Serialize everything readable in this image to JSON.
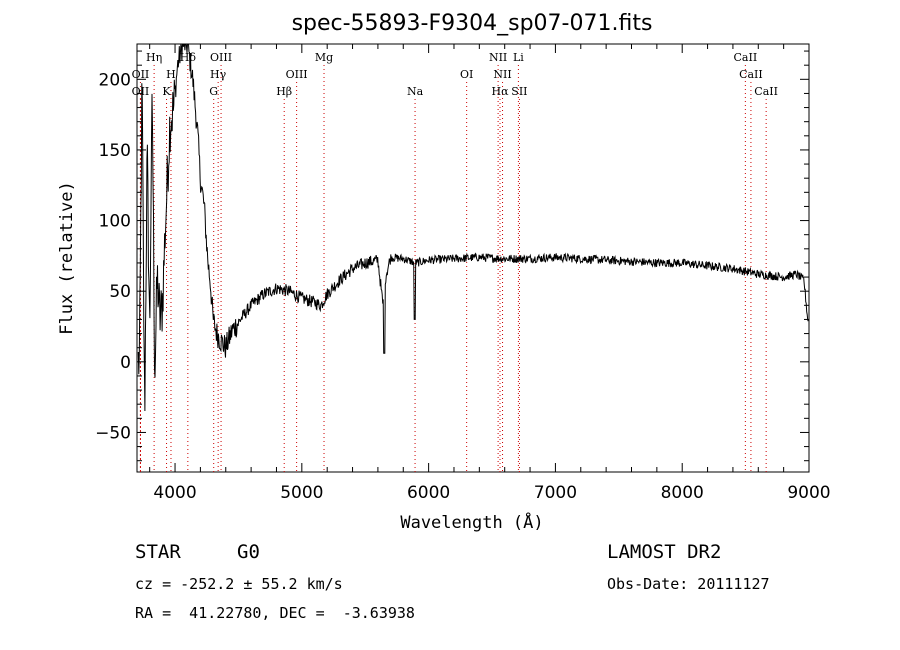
{
  "chart_data": {
    "type": "line",
    "title": "spec-55893-F9304_sp07-071.fits",
    "xlabel": "Wavelength (Å)",
    "ylabel": "Flux (relative)",
    "xlim": [
      3700,
      9000
    ],
    "ylim": [
      -78,
      225
    ],
    "xticks": [
      4000,
      5000,
      6000,
      7000,
      8000,
      9000
    ],
    "yticks": [
      -50,
      0,
      50,
      100,
      150,
      200
    ],
    "grid": false,
    "line_color": "#000000",
    "marker_color": "#cc0000",
    "spectrum_anchors": {
      "x": [
        3720,
        3740,
        3760,
        3780,
        3800,
        3820,
        3840,
        3860,
        3880,
        3900,
        3930,
        3960,
        3990,
        4020,
        4060,
        4100,
        4140,
        4180,
        4200,
        4230,
        4260,
        4280,
        4300,
        4330,
        4360,
        4400,
        4450,
        4500,
        4600,
        4700,
        4800,
        4900,
        5000,
        5100,
        5150,
        5200,
        5300,
        5400,
        5500,
        5600,
        5640,
        5660,
        5700,
        5800,
        5900,
        6000,
        6200,
        6400,
        6600,
        6800,
        7000,
        7200,
        7400,
        7600,
        7800,
        8000,
        8200,
        8400,
        8600,
        8800,
        8900,
        8960,
        8990
      ],
      "y": [
        0,
        200,
        -40,
        150,
        20,
        190,
        -10,
        60,
        30,
        40,
        110,
        170,
        180,
        210,
        225,
        224,
        200,
        160,
        130,
        110,
        70,
        55,
        30,
        20,
        15,
        10,
        22,
        28,
        40,
        48,
        52,
        50,
        45,
        42,
        40,
        48,
        58,
        66,
        70,
        72,
        40,
        60,
        74,
        73,
        70,
        72,
        73,
        74,
        73,
        73,
        74,
        73,
        72,
        71,
        70,
        70,
        68,
        66,
        62,
        60,
        62,
        58,
        30
      ]
    },
    "lines": [
      {
        "label": "OII",
        "wavelength": 3727,
        "row": 1
      },
      {
        "label": "Hη",
        "wavelength": 3835,
        "row": 0
      },
      {
        "label": "OII",
        "wavelength": 3727,
        "row": 2
      },
      {
        "label": "H",
        "wavelength": 3968,
        "row": 1
      },
      {
        "label": "K",
        "wavelength": 3933,
        "row": 2
      },
      {
        "label": "Hδ",
        "wavelength": 4101,
        "row": 0
      },
      {
        "label": "OIII",
        "wavelength": 4363,
        "row": 0
      },
      {
        "label": "Hγ",
        "wavelength": 4340,
        "row": 1
      },
      {
        "label": "G",
        "wavelength": 4305,
        "row": 2
      },
      {
        "label": "Hβ",
        "wavelength": 4861,
        "row": 2
      },
      {
        "label": "OIII",
        "wavelength": 4959,
        "row": 1
      },
      {
        "label": "Mg",
        "wavelength": 5175,
        "row": 0
      },
      {
        "label": "Na",
        "wavelength": 5893,
        "row": 2
      },
      {
        "label": "OI",
        "wavelength": 6300,
        "row": 1
      },
      {
        "label": "NII",
        "wavelength": 6548,
        "row": 0
      },
      {
        "label": "NII",
        "wavelength": 6583,
        "row": 1
      },
      {
        "label": "Hα",
        "wavelength": 6563,
        "row": 2
      },
      {
        "label": "Li",
        "wavelength": 6708,
        "row": 0
      },
      {
        "label": "SII",
        "wavelength": 6716,
        "row": 2
      },
      {
        "label": "CaII",
        "wavelength": 8498,
        "row": 0
      },
      {
        "label": "CaII",
        "wavelength": 8542,
        "row": 1
      },
      {
        "label": "CaII",
        "wavelength": 8662,
        "row": 2
      }
    ]
  },
  "info": {
    "class": "STAR",
    "subclass": "G0",
    "survey": "LAMOST DR2",
    "cz": "cz = -252.2 ± 55.2 km/s",
    "obs_date": "Obs-Date: 20111127",
    "radec": "RA =  41.22780, DEC =  -3.63938"
  }
}
